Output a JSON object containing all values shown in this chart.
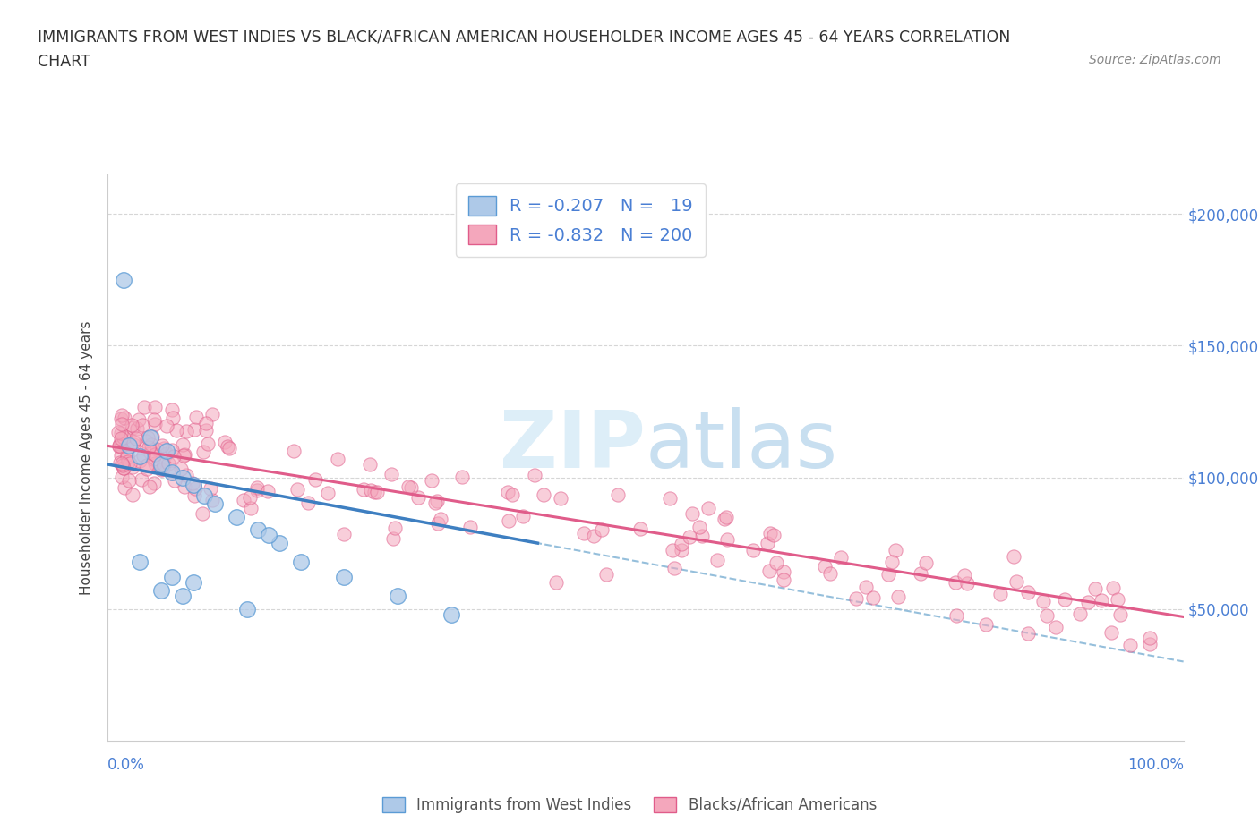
{
  "title_line1": "IMMIGRANTS FROM WEST INDIES VS BLACK/AFRICAN AMERICAN HOUSEHOLDER INCOME AGES 45 - 64 YEARS CORRELATION",
  "title_line2": "CHART",
  "source_text": "Source: ZipAtlas.com",
  "ylabel": "Householder Income Ages 45 - 64 years",
  "y_ticks": [
    0,
    50000,
    100000,
    150000,
    200000
  ],
  "x_lim": [
    0,
    100
  ],
  "y_lim": [
    0,
    215000
  ],
  "color_blue_fill": "#aec9e8",
  "color_blue_edge": "#5b9bd5",
  "color_pink_fill": "#f4a7bc",
  "color_pink_edge": "#e05c8a",
  "color_trendline_blue": "#3e7fc1",
  "color_trendline_pink": "#e05c8a",
  "color_trendline_dashed": "#8ab8d8",
  "watermark_color": "#ddeef8",
  "background_color": "#ffffff",
  "tick_label_color": "#4a7fd4",
  "title_color": "#333333",
  "ylabel_color": "#444444",
  "grid_color": "#cccccc"
}
